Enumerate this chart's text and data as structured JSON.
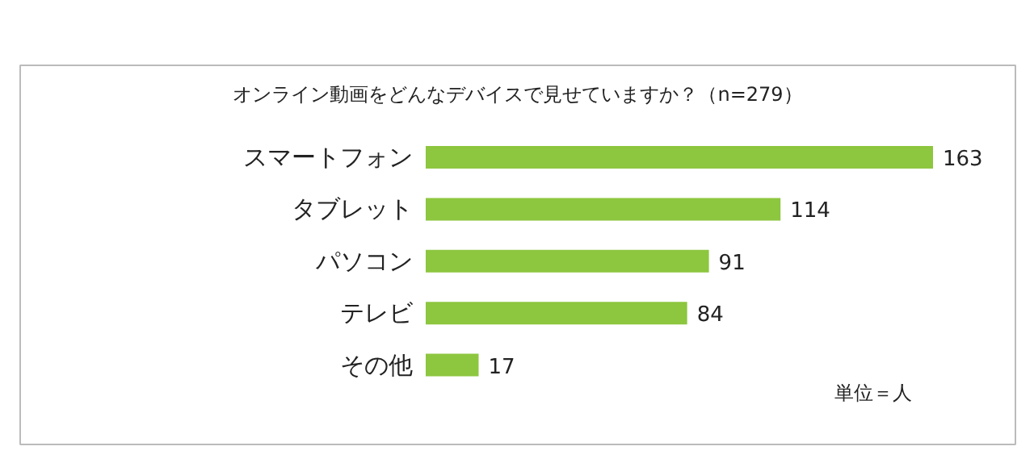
{
  "chart_data": {
    "type": "bar",
    "orientation": "horizontal",
    "title": "オンライン動画をどんなデバイスで見せていますか？（n=279）",
    "categories": [
      "スマートフォン",
      "タブレット",
      "パソコン",
      "テレビ",
      "その他"
    ],
    "values": [
      163,
      114,
      91,
      84,
      17
    ],
    "color": "#8dc63f",
    "data_labels": true,
    "annotations": [
      "単位＝人"
    ]
  }
}
